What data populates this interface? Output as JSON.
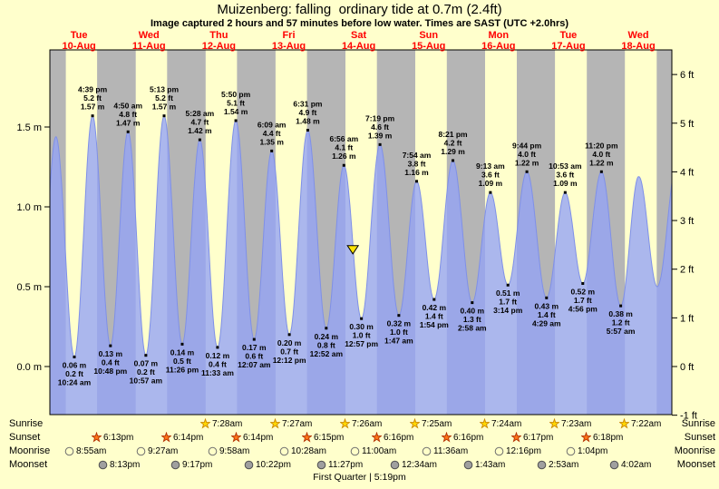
{
  "title": "Muizenberg: falling  ordinary tide at 0.7m (2.4ft)",
  "subtitle": "Image captured 2 hours and 57 minutes before low water. Times are SAST (UTC +2.0hrs)",
  "chart_data": {
    "type": "area",
    "title": "Muizenberg: falling  ordinary tide at 0.7m (2.4ft)",
    "x_axis": {
      "days": [
        {
          "name": "Tue",
          "date": "10-Aug"
        },
        {
          "name": "Wed",
          "date": "11-Aug"
        },
        {
          "name": "Thu",
          "date": "12-Aug"
        },
        {
          "name": "Fri",
          "date": "13-Aug"
        },
        {
          "name": "Sat",
          "date": "14-Aug"
        },
        {
          "name": "Sun",
          "date": "15-Aug"
        },
        {
          "name": "Mon",
          "date": "16-Aug"
        },
        {
          "name": "Tue",
          "date": "17-Aug"
        },
        {
          "name": "Wed",
          "date": "18-Aug"
        }
      ]
    },
    "y_axis_left": {
      "unit": "m",
      "ticks": [
        {
          "value": 0.0,
          "label": "0.0 m"
        },
        {
          "value": 0.5,
          "label": "0.5 m"
        },
        {
          "value": 1.0,
          "label": "1.0 m"
        },
        {
          "value": 1.5,
          "label": "1.5 m"
        }
      ]
    },
    "y_axis_right": {
      "unit": "ft",
      "ticks": [
        {
          "value": -1,
          "label": "-1 ft"
        },
        {
          "value": 0,
          "label": "0 ft"
        },
        {
          "value": 1,
          "label": "1 ft"
        },
        {
          "value": 2,
          "label": "2 ft"
        },
        {
          "value": 3,
          "label": "3 ft"
        },
        {
          "value": 4,
          "label": "4 ft"
        },
        {
          "value": 5,
          "label": "5 ft"
        },
        {
          "value": 6,
          "label": "6 ft"
        }
      ]
    },
    "tide_events": [
      {
        "type": "low",
        "day": 0,
        "time": "10:24 am",
        "height_m": 0.06,
        "label_m": "0.06 m",
        "label_ft": "0.2 ft"
      },
      {
        "type": "high",
        "day": 0,
        "time": "4:39 pm",
        "height_m": 1.57,
        "label_m": "1.57 m",
        "label_ft": "5.2 ft"
      },
      {
        "type": "low",
        "day": 0,
        "time": "10:48 pm",
        "height_m": 0.13,
        "label_m": "0.13 m",
        "label_ft": "0.4 ft"
      },
      {
        "type": "high",
        "day": 1,
        "time": "4:50 am",
        "height_m": 1.47,
        "label_m": "1.47 m",
        "label_ft": "4.8 ft"
      },
      {
        "type": "low",
        "day": 1,
        "time": "10:57 am",
        "height_m": 0.07,
        "label_m": "0.07 m",
        "label_ft": "0.2 ft"
      },
      {
        "type": "high",
        "day": 1,
        "time": "5:13 pm",
        "height_m": 1.57,
        "label_m": "1.57 m",
        "label_ft": "5.2 ft"
      },
      {
        "type": "low",
        "day": 1,
        "time": "11:26 pm",
        "height_m": 0.14,
        "label_m": "0.14 m",
        "label_ft": "0.5 ft"
      },
      {
        "type": "high",
        "day": 2,
        "time": "5:28 am",
        "height_m": 1.42,
        "label_m": "1.42 m",
        "label_ft": "4.7 ft"
      },
      {
        "type": "low",
        "day": 2,
        "time": "11:33 am",
        "height_m": 0.12,
        "label_m": "0.12 m",
        "label_ft": "0.4 ft"
      },
      {
        "type": "high",
        "day": 2,
        "time": "5:50 pm",
        "height_m": 1.54,
        "label_m": "1.54 m",
        "label_ft": "5.1 ft"
      },
      {
        "type": "low",
        "day": 3,
        "time": "12:07 am",
        "height_m": 0.17,
        "label_m": "0.17 m",
        "label_ft": "0.6 ft"
      },
      {
        "type": "high",
        "day": 3,
        "time": "6:09 am",
        "height_m": 1.35,
        "label_m": "1.35 m",
        "label_ft": "4.4 ft"
      },
      {
        "type": "low",
        "day": 3,
        "time": "12:12 pm",
        "height_m": 0.2,
        "label_m": "0.20 m",
        "label_ft": "0.7 ft"
      },
      {
        "type": "high",
        "day": 3,
        "time": "6:31 pm",
        "height_m": 1.48,
        "label_m": "1.48 m",
        "label_ft": "4.9 ft"
      },
      {
        "type": "low",
        "day": 4,
        "time": "12:52 am",
        "height_m": 0.24,
        "label_m": "0.24 m",
        "label_ft": "0.8 ft"
      },
      {
        "type": "high",
        "day": 4,
        "time": "6:56 am",
        "height_m": 1.26,
        "label_m": "1.26 m",
        "label_ft": "4.1 ft"
      },
      {
        "type": "low",
        "day": 4,
        "time": "12:57 pm",
        "height_m": 0.3,
        "label_m": "0.30 m",
        "label_ft": "1.0 ft"
      },
      {
        "type": "high",
        "day": 4,
        "time": "7:19 pm",
        "height_m": 1.39,
        "label_m": "1.39 m",
        "label_ft": "4.6 ft"
      },
      {
        "type": "low",
        "day": 5,
        "time": "1:47 am",
        "height_m": 0.32,
        "label_m": "0.32 m",
        "label_ft": "1.0 ft"
      },
      {
        "type": "high",
        "day": 5,
        "time": "7:54 am",
        "height_m": 1.16,
        "label_m": "1.16 m",
        "label_ft": "3.8 ft"
      },
      {
        "type": "low",
        "day": 5,
        "time": "1:54 pm",
        "height_m": 0.42,
        "label_m": "0.42 m",
        "label_ft": "1.4 ft"
      },
      {
        "type": "high",
        "day": 5,
        "time": "8:21 pm",
        "height_m": 1.29,
        "label_m": "1.29 m",
        "label_ft": "4.2 ft"
      },
      {
        "type": "low",
        "day": 6,
        "time": "2:58 am",
        "height_m": 0.4,
        "label_m": "0.40 m",
        "label_ft": "1.3 ft"
      },
      {
        "type": "high",
        "day": 6,
        "time": "9:13 am",
        "height_m": 1.09,
        "label_m": "1.09 m",
        "label_ft": "3.6 ft"
      },
      {
        "type": "low",
        "day": 6,
        "time": "3:14 pm",
        "height_m": 0.51,
        "label_m": "0.51 m",
        "label_ft": "1.7 ft"
      },
      {
        "type": "high",
        "day": 6,
        "time": "9:44 pm",
        "height_m": 1.22,
        "label_m": "1.22 m",
        "label_ft": "4.0 ft"
      },
      {
        "type": "low",
        "day": 7,
        "time": "4:29 am",
        "height_m": 0.43,
        "label_m": "0.43 m",
        "label_ft": "1.4 ft"
      },
      {
        "type": "high",
        "day": 7,
        "time": "10:53 am",
        "height_m": 1.09,
        "label_m": "1.09 m",
        "label_ft": "3.6 ft"
      },
      {
        "type": "low",
        "day": 7,
        "time": "4:56 pm",
        "height_m": 0.52,
        "label_m": "0.52 m",
        "label_ft": "1.7 ft"
      },
      {
        "type": "high",
        "day": 7,
        "time": "11:20 pm",
        "height_m": 1.22,
        "label_m": "1.22 m",
        "label_ft": "4.0 ft"
      },
      {
        "type": "low",
        "day": 8,
        "time": "5:57 am",
        "height_m": 0.38,
        "label_m": "0.38 m",
        "label_ft": "1.2 ft"
      }
    ],
    "current_marker": {
      "day": 4,
      "time": "10:00 am",
      "height_m": 0.7
    },
    "astro": {
      "rows": [
        {
          "id": "sunrise",
          "label": "Sunrise",
          "icon": "sunrise-star-icon",
          "events": [
            {
              "day": 2,
              "time": "7:28am"
            },
            {
              "day": 3,
              "time": "7:27am"
            },
            {
              "day": 4,
              "time": "7:26am"
            },
            {
              "day": 5,
              "time": "7:25am"
            },
            {
              "day": 6,
              "time": "7:24am"
            },
            {
              "day": 7,
              "time": "7:23am"
            },
            {
              "day": 8,
              "time": "7:22am"
            }
          ]
        },
        {
          "id": "sunset",
          "label": "Sunset",
          "icon": "sunset-star-icon",
          "events": [
            {
              "day": 0,
              "time": "6:13pm"
            },
            {
              "day": 1,
              "time": "6:14pm"
            },
            {
              "day": 2,
              "time": "6:14pm"
            },
            {
              "day": 3,
              "time": "6:15pm"
            },
            {
              "day": 4,
              "time": "6:16pm"
            },
            {
              "day": 5,
              "time": "6:16pm"
            },
            {
              "day": 6,
              "time": "6:17pm"
            },
            {
              "day": 7,
              "time": "6:18pm"
            }
          ]
        },
        {
          "id": "moonrise",
          "label": "Moonrise",
          "icon": "moonrise-icon",
          "events": [
            {
              "day": 0,
              "time": "8:55am"
            },
            {
              "day": 1,
              "time": "9:27am"
            },
            {
              "day": 2,
              "time": "9:58am"
            },
            {
              "day": 3,
              "time": "10:28am"
            },
            {
              "day": 4,
              "time": "11:00am"
            },
            {
              "day": 5,
              "time": "11:36am"
            },
            {
              "day": 6,
              "time": "12:16pm"
            },
            {
              "day": 7,
              "time": "1:04pm"
            }
          ]
        },
        {
          "id": "moonset",
          "label": "Moonset",
          "icon": "moonset-icon",
          "events": [
            {
              "day": 0,
              "time": "8:13pm"
            },
            {
              "day": 1,
              "time": "9:17pm"
            },
            {
              "day": 2,
              "time": "10:22pm"
            },
            {
              "day": 3,
              "time": "11:27pm"
            },
            {
              "day": 5,
              "time": "12:34am"
            },
            {
              "day": 6,
              "time": "1:43am"
            },
            {
              "day": 7,
              "time": "2:53am"
            },
            {
              "day": 8,
              "time": "4:02am"
            }
          ]
        }
      ]
    },
    "footer": "First Quarter | 5:19pm",
    "colors": {
      "background": "#ffffcc",
      "night_band": "#b5b5b5",
      "tide_fill": "rgba(148,163,246,0.78)",
      "tide_stroke": "#7f90e8",
      "day_label": "#ff0000",
      "axis_text": "#000000",
      "annotation_text": "#000000",
      "marker_fill": "#ffe400",
      "sunrise_star": {
        "fill": "#ffd700",
        "stroke": "#cc8800"
      },
      "sunset_star": {
        "fill": "#ff7519",
        "stroke": "#b33000"
      },
      "moonrise_circle": {
        "fill": "#ffffc8",
        "stroke": "#707070"
      },
      "moonset_circle": {
        "fill": "#9f9f9f",
        "stroke": "#505050"
      }
    }
  }
}
